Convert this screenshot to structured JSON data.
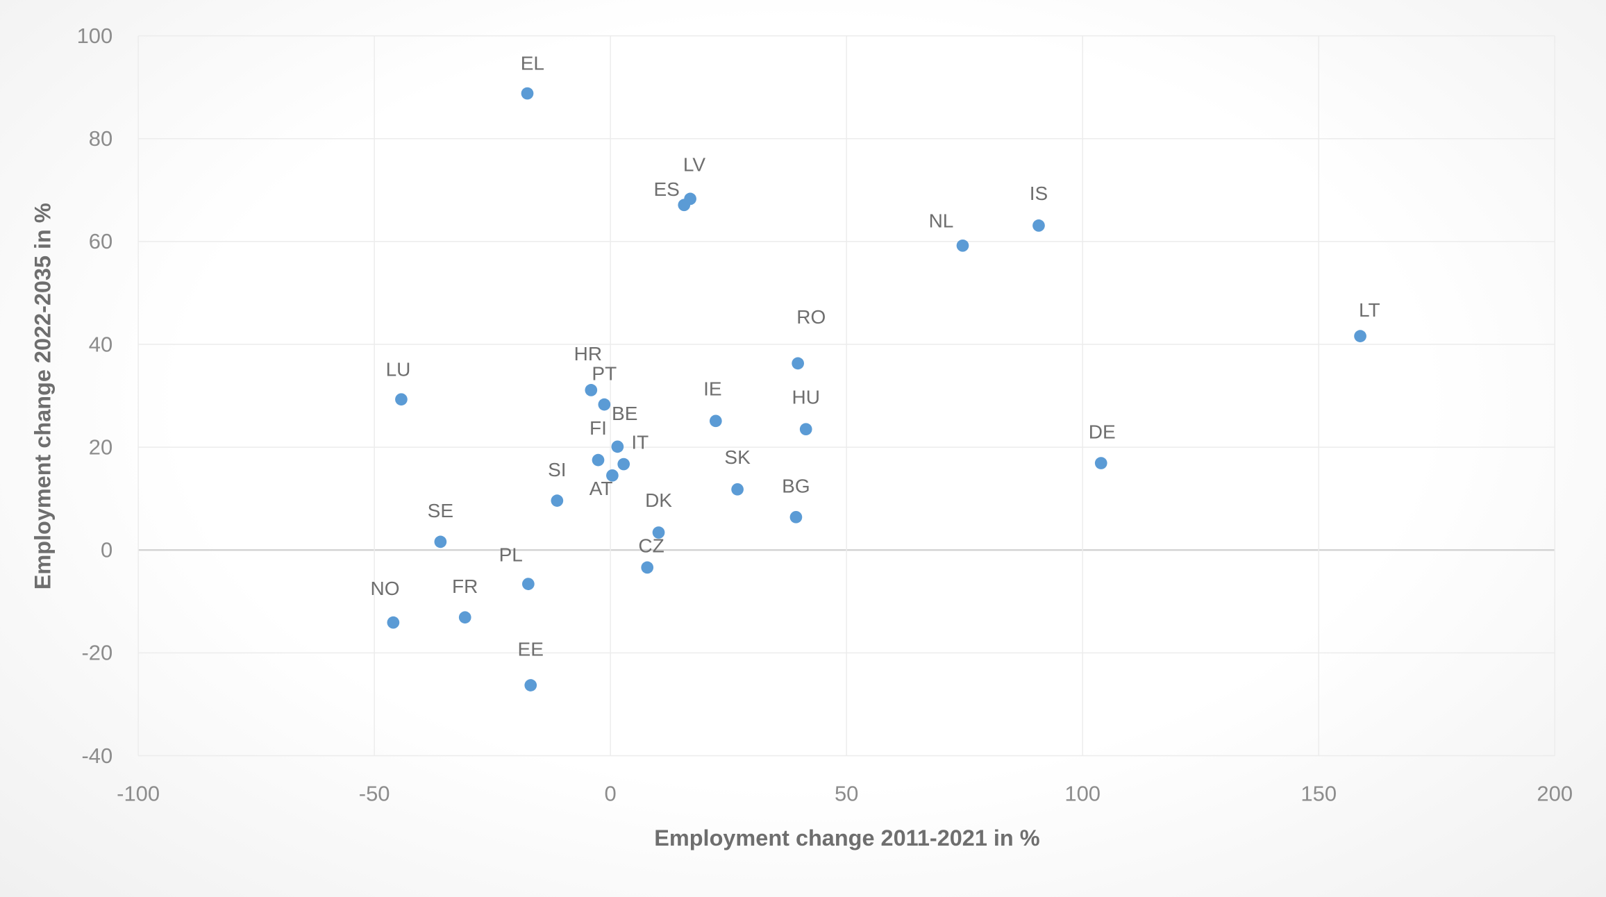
{
  "chart_data": {
    "type": "scatter",
    "title": "",
    "xlabel": "Employment change 2011-2021 in %",
    "ylabel": "Employment change 2022-2035 in %",
    "xlim": [
      -100,
      200
    ],
    "ylim": [
      -40,
      100
    ],
    "xticks": [
      -100,
      -50,
      0,
      50,
      100,
      150,
      200
    ],
    "yticks": [
      -40,
      -20,
      0,
      20,
      40,
      60,
      80,
      100
    ],
    "grid": true,
    "legend": "none",
    "color": "#5b9bd5",
    "points": [
      {
        "label": "EL",
        "x": -17.6,
        "y": 88.8
      },
      {
        "label": "LV",
        "x": 16.9,
        "y": 68.3
      },
      {
        "label": "ES",
        "x": 15.6,
        "y": 67.1
      },
      {
        "label": "NL",
        "x": 74.6,
        "y": 59.2
      },
      {
        "label": "IS",
        "x": 90.7,
        "y": 63.1
      },
      {
        "label": "LT",
        "x": 158.8,
        "y": 41.6
      },
      {
        "label": "RO",
        "x": 39.7,
        "y": 36.3
      },
      {
        "label": "HR",
        "x": -4.1,
        "y": 31.1
      },
      {
        "label": "PT",
        "x": -1.3,
        "y": 28.3
      },
      {
        "label": "LU",
        "x": -44.3,
        "y": 29.3
      },
      {
        "label": "IE",
        "x": 22.3,
        "y": 25.1
      },
      {
        "label": "HU",
        "x": 41.4,
        "y": 23.5
      },
      {
        "label": "BE",
        "x": 1.5,
        "y": 20.1
      },
      {
        "label": "FI",
        "x": -2.6,
        "y": 17.5
      },
      {
        "label": "IT",
        "x": 2.8,
        "y": 16.7
      },
      {
        "label": "AT",
        "x": 0.4,
        "y": 14.5
      },
      {
        "label": "DE",
        "x": 103.9,
        "y": 16.9
      },
      {
        "label": "SK",
        "x": 26.9,
        "y": 11.8
      },
      {
        "label": "BG",
        "x": 39.3,
        "y": 6.4
      },
      {
        "label": "SI",
        "x": -11.3,
        "y": 9.6
      },
      {
        "label": "DK",
        "x": 10.2,
        "y": 3.4
      },
      {
        "label": "SE",
        "x": -36.0,
        "y": 1.6
      },
      {
        "label": "CZ",
        "x": 7.8,
        "y": -3.4
      },
      {
        "label": "PL",
        "x": -17.4,
        "y": -6.6
      },
      {
        "label": "NO",
        "x": -46.0,
        "y": -14.1
      },
      {
        "label": "FR",
        "x": -30.8,
        "y": -13.1
      },
      {
        "label": "EE",
        "x": -16.9,
        "y": -26.3
      }
    ]
  }
}
